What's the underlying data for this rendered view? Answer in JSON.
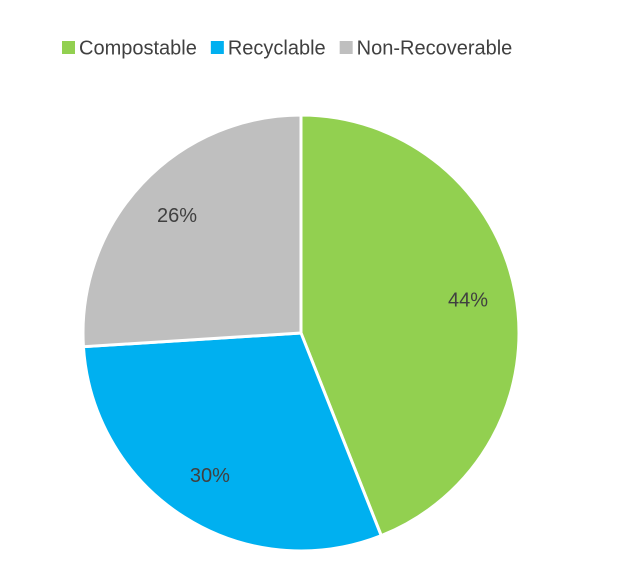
{
  "chart_data": {
    "type": "pie",
    "categories": [
      "Compostable",
      "Recyclable",
      "Non-Recoverable"
    ],
    "values": [
      44,
      30,
      26
    ],
    "value_labels": [
      "44%",
      "30%",
      "26%"
    ],
    "colors": [
      "#92d050",
      "#00b0f0",
      "#bfbfbf"
    ],
    "legend": "top"
  }
}
